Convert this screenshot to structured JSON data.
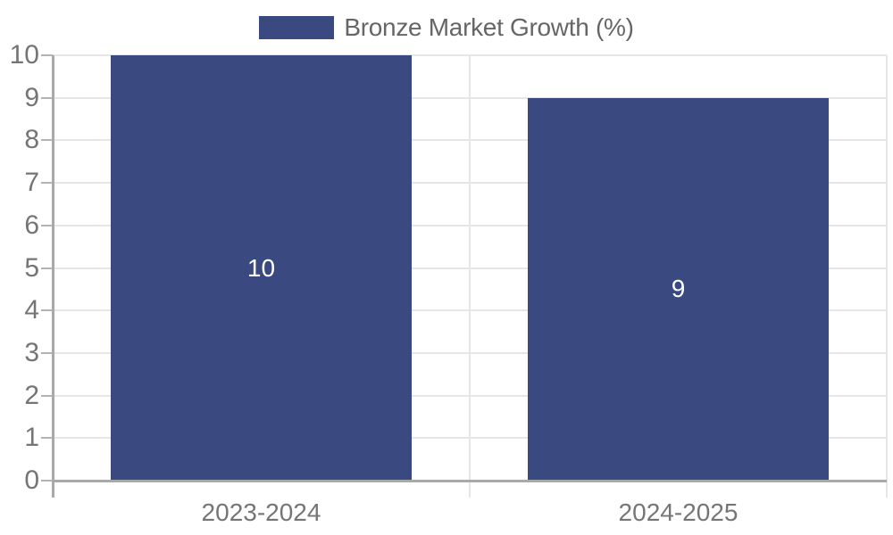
{
  "chart_data": {
    "type": "bar",
    "title": "Bronze Market Growth (%)",
    "legend": {
      "label": "Bronze Market Growth (%)",
      "position": "top"
    },
    "categories": [
      "2023-2024",
      "2024-2025"
    ],
    "values": [
      10,
      9
    ],
    "data_labels": [
      "10",
      "9"
    ],
    "xlabel": "",
    "ylabel": "",
    "ylim": [
      0,
      10
    ],
    "ytick_step": 1,
    "yticks": [
      0,
      1,
      2,
      3,
      4,
      5,
      6,
      7,
      8,
      9,
      10
    ],
    "grid": true,
    "colors": {
      "bar": "#3A4A80",
      "axis": "#a9a9a9",
      "grid": "#e6e6e6",
      "y_tick_mark": "#b3b3b3",
      "tick_text": "#757575",
      "legend_text": "#666666",
      "data_label_text": "#ffffff"
    }
  }
}
